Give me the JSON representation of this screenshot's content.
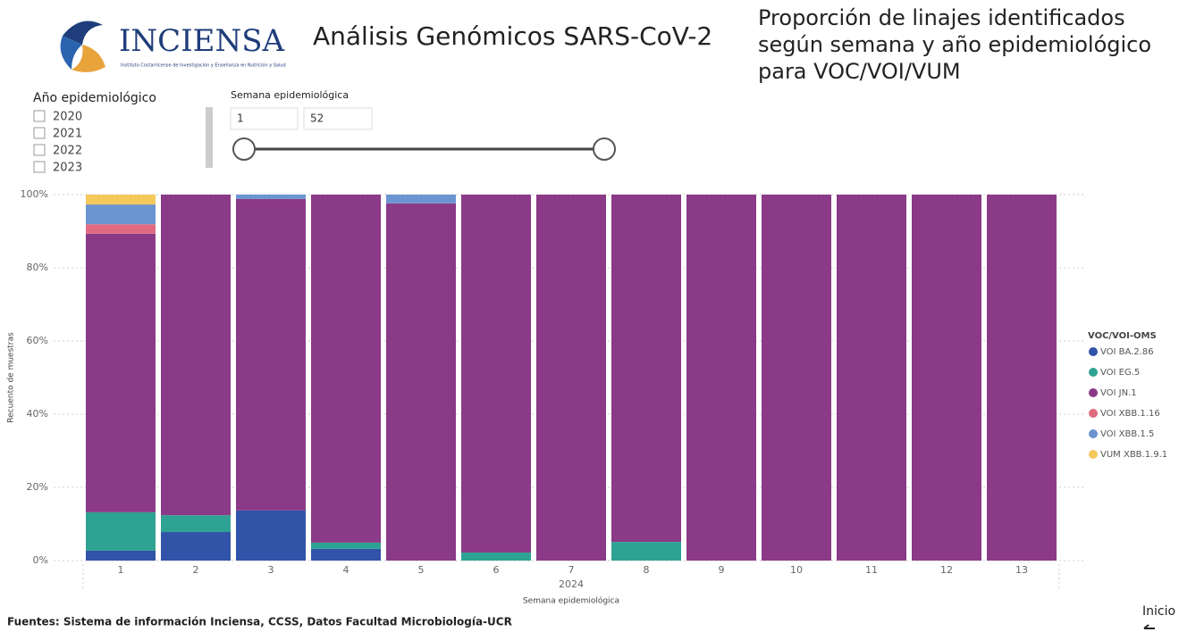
{
  "header": {
    "logo_name": "INCIENSA",
    "logo_subtitle": "Instituto Costarricense de Investigación y Enseñanza en Nutrición y Salud",
    "title": "Análisis Genómicos SARS-CoV-2",
    "chart_title_lines": [
      "Proporción de linajes identificados",
      "según semana y año epidemiológico",
      "para VOC/VOI/VUM"
    ]
  },
  "filters": {
    "year": {
      "label": "Año epidemiológico",
      "options": [
        "2020",
        "2021",
        "2022",
        "2023"
      ]
    },
    "week": {
      "label": "Semana epidemiológica",
      "from": 1,
      "to": 52
    }
  },
  "chart_data": {
    "type": "stacked_bar_100",
    "x_label": "Semana epidemiológica",
    "x_group": "2024",
    "y_label": "Recuento de muestras",
    "categories": [
      "1",
      "2",
      "3",
      "4",
      "5",
      "6",
      "7",
      "8",
      "9",
      "10",
      "11",
      "12",
      "13"
    ],
    "ylim": [
      0,
      100
    ],
    "yticks": [
      {
        "value": 0,
        "label": "0%"
      },
      {
        "value": 20,
        "label": "20%"
      },
      {
        "value": 40,
        "label": "40%"
      },
      {
        "value": 60,
        "label": "60%"
      },
      {
        "value": 80,
        "label": "80%"
      },
      {
        "value": 100,
        "label": "100%"
      }
    ],
    "grid": true,
    "legend": "right",
    "legend_title": "VOC/VOI-OMS",
    "series": [
      {
        "name": "VOI BA.2.86",
        "color": "#3153a8",
        "values": [
          2.7,
          7.8,
          13.7,
          3.2,
          0,
          0,
          0,
          0,
          0,
          0,
          0,
          0,
          0
        ]
      },
      {
        "name": "VOI EG.5",
        "color": "#2fa393",
        "values": [
          10.5,
          4.6,
          0,
          1.7,
          0,
          2.2,
          0,
          5.1,
          0,
          0,
          0,
          0,
          0
        ]
      },
      {
        "name": "VOI JN.1",
        "color": "#8b3a87",
        "values": [
          76.1,
          87.6,
          85.1,
          95.1,
          97.6,
          97.8,
          100,
          94.9,
          100,
          100,
          100,
          100,
          100
        ]
      },
      {
        "name": "VOI XBB.1.16",
        "color": "#e06a7f",
        "values": [
          2.6,
          0,
          0,
          0,
          0,
          0,
          0,
          0,
          0,
          0,
          0,
          0,
          0
        ]
      },
      {
        "name": "VOI XBB.1.5",
        "color": "#6b95d1",
        "values": [
          5.4,
          0,
          1.2,
          0,
          2.4,
          0,
          0,
          0,
          0,
          0,
          0,
          0,
          0
        ]
      },
      {
        "name": "VUM XBB.1.9.1",
        "color": "#f5c85b",
        "values": [
          2.7,
          0,
          0,
          0,
          0,
          0,
          0,
          0,
          0,
          0,
          0,
          0,
          0
        ]
      }
    ]
  },
  "footer": {
    "source": "Fuentes: Sistema de información Inciensa, CCSS, Datos Facultad Microbiología-UCR",
    "home": "Inicio"
  }
}
